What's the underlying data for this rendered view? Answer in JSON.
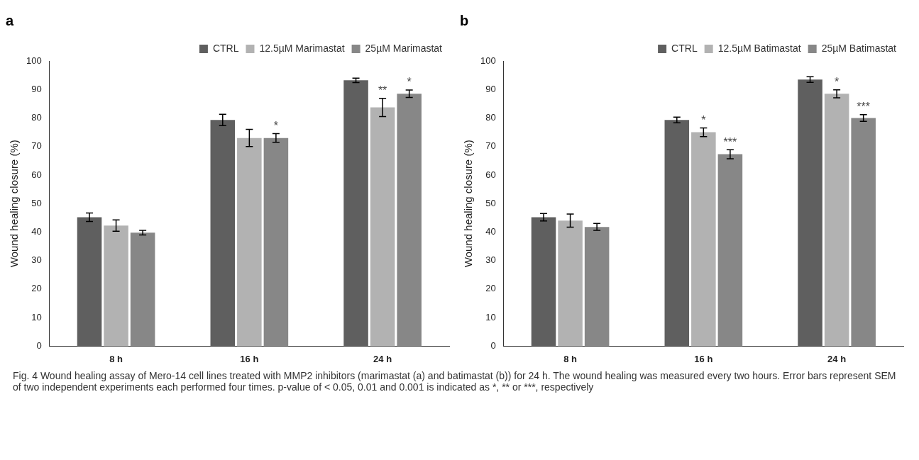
{
  "chart_data": [
    {
      "type": "bar",
      "title": "a",
      "ylabel": "Wound healing closure (%)",
      "categories": [
        "8 h",
        "16 h",
        "24 h"
      ],
      "series": [
        {
          "name": "CTRL",
          "color": "#5f5f5f",
          "values": [
            45.2,
            79.3,
            93.2
          ],
          "errors": [
            1.5,
            2,
            0.8
          ]
        },
        {
          "name": "12.5µM Marimastat",
          "color": "#b2b2b2",
          "values": [
            42.3,
            73,
            83.7
          ],
          "errors": [
            2,
            3,
            3.2
          ],
          "value_labels": [
            null,
            null,
            "**"
          ]
        },
        {
          "name": "25µM Marimastat",
          "color": "#878787",
          "values": [
            39.8,
            73,
            88.5
          ],
          "errors": [
            0.8,
            1.5,
            1.3
          ],
          "value_labels": [
            null,
            "*",
            "*"
          ]
        }
      ],
      "ylim": [
        0,
        100
      ],
      "yticks": [
        0,
        10,
        20,
        30,
        40,
        50,
        60,
        70,
        80,
        90,
        100
      ],
      "grid": false,
      "legend": "top"
    },
    {
      "type": "bar",
      "title": "b",
      "ylabel": "Wound healing closure (%)",
      "categories": [
        "8 h",
        "16 h",
        "24 h"
      ],
      "series": [
        {
          "name": "CTRL",
          "color": "#5f5f5f",
          "values": [
            45.2,
            79.3,
            93.5
          ],
          "errors": [
            1.3,
            1,
            1
          ]
        },
        {
          "name": "12.5µM Batimastat",
          "color": "#b2b2b2",
          "values": [
            44,
            75,
            88.5
          ],
          "errors": [
            2.3,
            1.5,
            1.4
          ],
          "value_labels": [
            null,
            "*",
            "*"
          ]
        },
        {
          "name": "25µM Batimastat",
          "color": "#878787",
          "values": [
            41.8,
            67.3,
            80
          ],
          "errors": [
            1.2,
            1.6,
            1.2
          ],
          "value_labels": [
            null,
            "***",
            "***"
          ]
        }
      ],
      "ylim": [
        0,
        100
      ],
      "yticks": [
        0,
        10,
        20,
        30,
        40,
        50,
        60,
        70,
        80,
        90,
        100
      ],
      "grid": false,
      "legend": "top",
      "annotations": [
        "Fig. 4  Wound healing assay of Mero-14 cell lines treated with MMP2 inhibitors (marimastat (a) and batimastat (b)) for 24 h. The wound healing was measured every two hours. Error bars represent SEM of two independent experiments each performed four times. p-value of < 0.05, 0.01 and 0.001 is indicated as *, ** or ***, respectively"
      ]
    }
  ]
}
